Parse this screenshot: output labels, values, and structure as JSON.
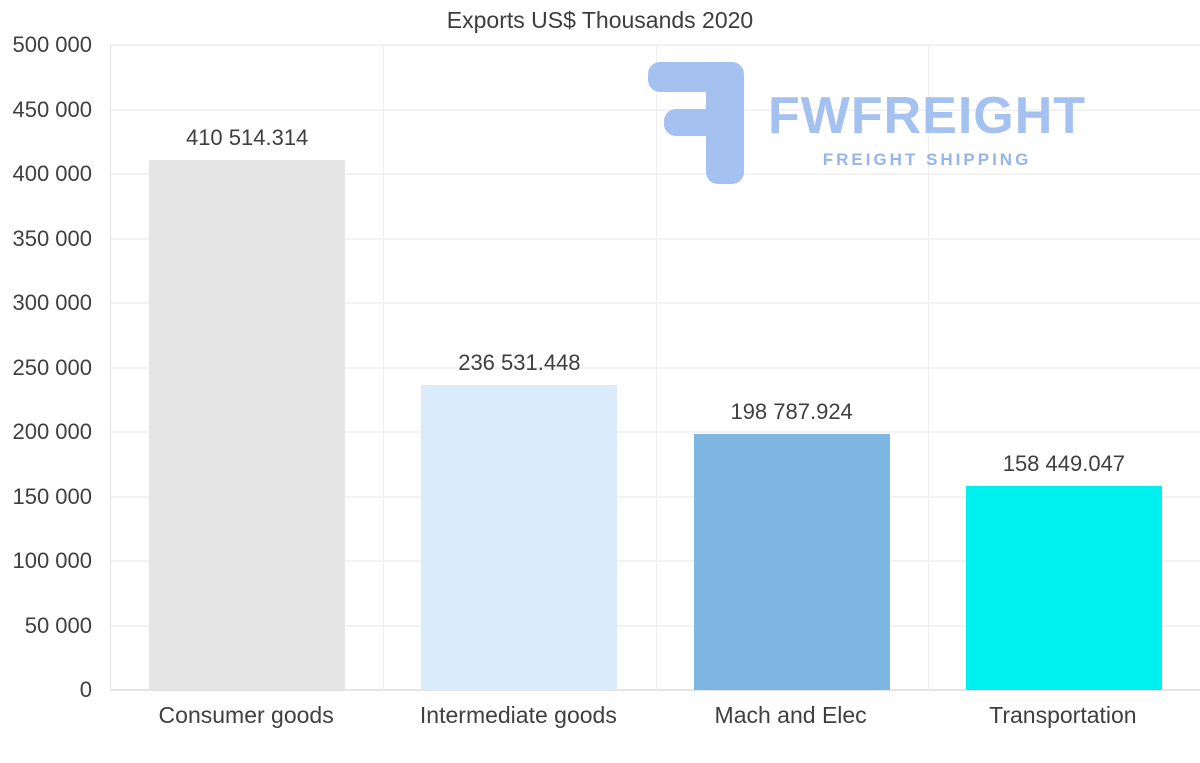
{
  "title": "Exports US$ Thousands 2020",
  "watermark": {
    "brand": "FWFREIGHT",
    "tagline": "FREIGHT SHIPPING",
    "color": "#a4c1f0"
  },
  "chart_data": {
    "type": "bar",
    "title": "Exports US$ Thousands 2020",
    "categories": [
      "Consumer goods",
      "Intermediate goods",
      "Mach and Elec",
      "Transportation"
    ],
    "values": [
      410514.314,
      236531.448,
      198787.924,
      158449.047
    ],
    "value_labels": [
      "410 514.314",
      "236 531.448",
      "198 787.924",
      "158 449.047"
    ],
    "bar_colors": [
      "#e5e5e5",
      "#daecfb",
      "#7db6e1",
      "#00f0f0"
    ],
    "xlabel": "",
    "ylabel": "",
    "ylim": [
      0,
      500000
    ],
    "ytick_step": 50000,
    "ytick_labels": [
      "0",
      "50 000",
      "100 000",
      "150 000",
      "200 000",
      "250 000",
      "300 000",
      "350 000",
      "400 000",
      "450 000",
      "500 000"
    ],
    "grid": "horizontal",
    "legend": "none"
  }
}
